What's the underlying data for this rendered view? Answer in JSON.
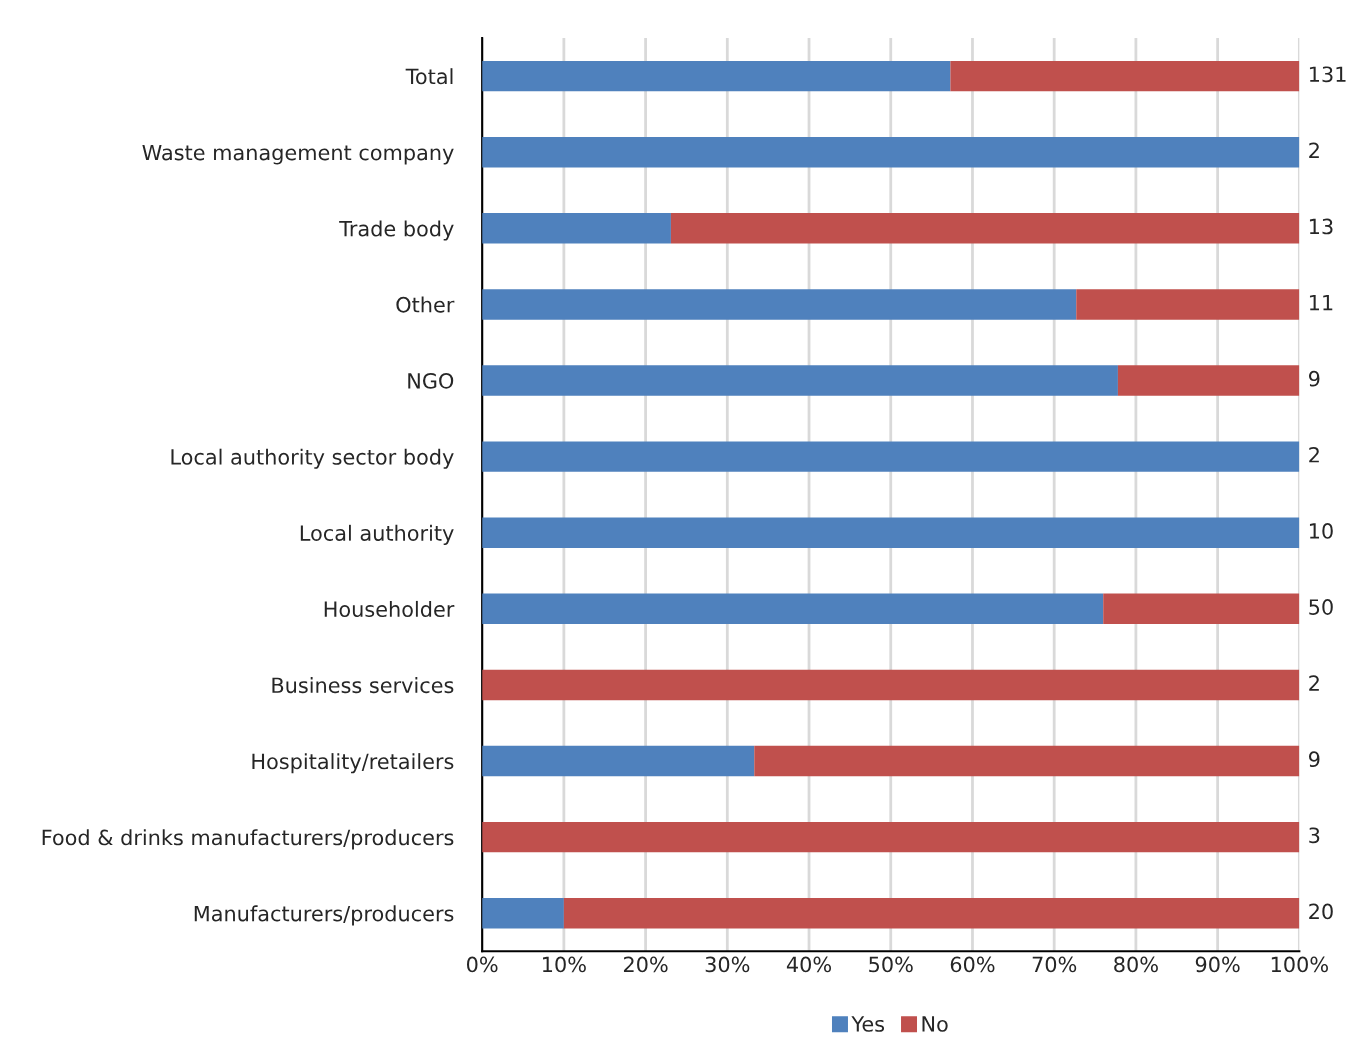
{
  "chart_data": {
    "type": "bar",
    "orientation": "horizontal",
    "stacked": true,
    "categories": [
      "Total",
      "Waste management company",
      "Trade body",
      "Other",
      "NGO",
      "Local authority sector body",
      "Local authority",
      "Householder",
      "Business services",
      "Hospitality/retailers",
      "Food & drinks manufacturers/producers",
      "Manufacturers/producers"
    ],
    "series": [
      {
        "name": "Yes",
        "color": "#4f81bd",
        "values": [
          57.3,
          100,
          23.1,
          72.7,
          77.8,
          100,
          100,
          76,
          0,
          33.3,
          0,
          10
        ]
      },
      {
        "name": "No",
        "color": "#c0504d",
        "values": [
          42.7,
          0,
          76.9,
          27.3,
          22.2,
          0,
          0,
          24,
          100,
          66.7,
          100,
          90
        ]
      }
    ],
    "annotations": [
      "131",
      "2",
      "13",
      "11",
      "9",
      "2",
      "10",
      "50",
      "2",
      "9",
      "3",
      "20"
    ],
    "xlim": [
      0,
      100
    ],
    "xticks": [
      {
        "value": 0,
        "label": "0%"
      },
      {
        "value": 10,
        "label": "10%"
      },
      {
        "value": 20,
        "label": "20%"
      },
      {
        "value": 30,
        "label": "30%"
      },
      {
        "value": 40,
        "label": "40%"
      },
      {
        "value": 50,
        "label": "50%"
      },
      {
        "value": 60,
        "label": "60%"
      },
      {
        "value": 70,
        "label": "70%"
      },
      {
        "value": 80,
        "label": "80%"
      },
      {
        "value": 90,
        "label": "90%"
      },
      {
        "value": 100,
        "label": "100%"
      }
    ],
    "grid": "x",
    "legend": "bottom"
  }
}
